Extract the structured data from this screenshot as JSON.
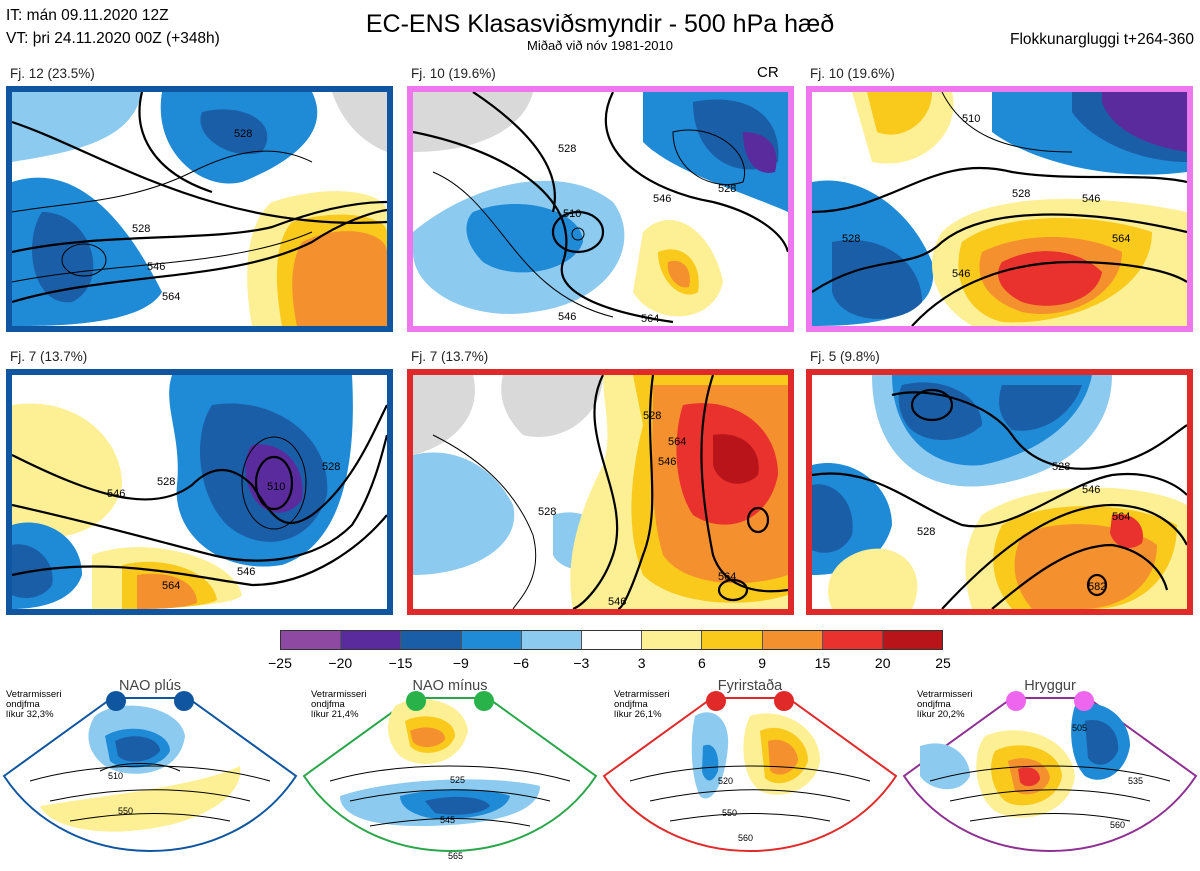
{
  "header": {
    "it_line": "IT: mán 09.11.2020 12Z",
    "vt_line": "VT: þri 24.11.2020 00Z  (+348h)",
    "title": "EC-ENS Klasasviðsmyndir - 500 hPa hæð",
    "subtitle": "Miðað við nóv 1981-2010",
    "window": "Flokkunargluggi t+264-360"
  },
  "panels": [
    {
      "label": "Fj. 12 (23.5%)",
      "border_color": "#0f55a0",
      "tag": "",
      "contours": [
        "528",
        "528",
        "546",
        "564"
      ]
    },
    {
      "label": "Fj. 10 (19.6%)",
      "border_color": "#ee77ee",
      "tag": "CR",
      "contours": [
        "528",
        "510",
        "546",
        "528",
        "546",
        "564"
      ]
    },
    {
      "label": "Fj. 10 (19.6%)",
      "border_color": "#ee77ee",
      "tag": "",
      "contours": [
        "510",
        "528",
        "546",
        "564",
        "528",
        "546"
      ]
    },
    {
      "label": "Fj. 7 (13.7%)",
      "border_color": "#0f55a0",
      "tag": "",
      "contours": [
        "528",
        "546",
        "510",
        "546",
        "564",
        "528"
      ]
    },
    {
      "label": "Fj. 7 (13.7%)",
      "border_color": "#e02a2a",
      "tag": "",
      "contours": [
        "528",
        "546",
        "564",
        "528",
        "546",
        "564"
      ]
    },
    {
      "label": "Fj. 5 (9.8%)",
      "border_color": "#e02a2a",
      "tag": "",
      "contours": [
        "528",
        "546",
        "564",
        "582",
        "528"
      ]
    }
  ],
  "colorbar": {
    "colors": [
      "#8e4aa2",
      "#5a2b9c",
      "#1b5ea8",
      "#1f8ad6",
      "#8ccaf0",
      "#ffffff",
      "#fdef94",
      "#f9c91c",
      "#f4902e",
      "#e9322e",
      "#b8141a"
    ],
    "ticks": [
      "−25",
      "−20",
      "−15",
      "−9",
      "−6",
      "−3",
      "3",
      "6",
      "9",
      "15",
      "20",
      "25"
    ]
  },
  "regimes": [
    {
      "title": "NAO plús",
      "note": [
        "Vetrarmisseri",
        "ondjfma",
        "líkur 32,3%"
      ],
      "color": "#0f55a0",
      "dot_color": "#0f55a0",
      "contours": [
        "510",
        "550"
      ]
    },
    {
      "title": "NAO mínus",
      "note": [
        "Vetrarmisseri",
        "ondjfma",
        "líkur 21,4%"
      ],
      "color": "#29a64a",
      "dot_color": "#29b24a",
      "contours": [
        "525",
        "545",
        "565"
      ]
    },
    {
      "title": "Fyrirstaða",
      "note": [
        "Vetrarmisseri",
        "ondjfma",
        "líkur 26,1%"
      ],
      "color": "#e02a2a",
      "dot_color": "#e02a2a",
      "contours": [
        "520",
        "550",
        "560"
      ]
    },
    {
      "title": "Hryggur",
      "note": [
        "Vetrarmisseri",
        "ondjfma",
        "líkur 20,2%"
      ],
      "color": "#8e2f92",
      "dot_color": "#ee66ee",
      "contours": [
        "505",
        "535",
        "560"
      ]
    }
  ]
}
